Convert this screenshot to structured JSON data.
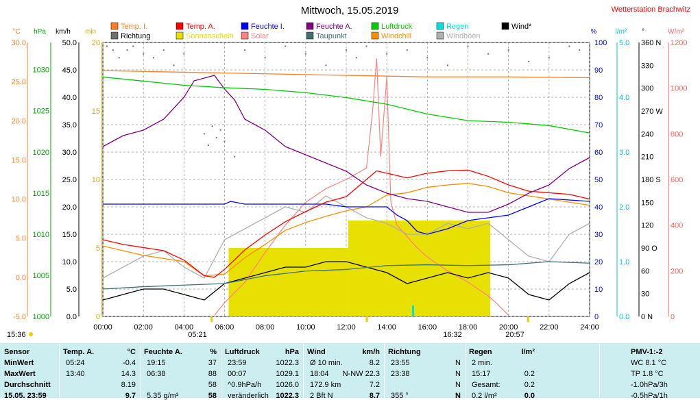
{
  "header": {
    "title": "Mittwoch, 15.05.2019",
    "station": "Wetterstation Brachwitz"
  },
  "legend": [
    {
      "label": "Temp. I.",
      "color": "#ff7f27"
    },
    {
      "label": "Temp. A.",
      "color": "#ff0000"
    },
    {
      "label": "Feuchte I.",
      "color": "#0000ff"
    },
    {
      "label": "Feuchte A.",
      "color": "#800080"
    },
    {
      "label": "Luftdruck",
      "color": "#00cc00"
    },
    {
      "label": "Regen",
      "color": "#00e0e0"
    },
    {
      "label": "Wind*",
      "color": "#000000"
    },
    {
      "label": "Richtung",
      "color": "#707070"
    },
    {
      "label": "Sonnenschein",
      "color": "#e8e000"
    },
    {
      "label": "Solar",
      "color": "#ff8080"
    },
    {
      "label": "Taupunkt",
      "color": "#407070"
    },
    {
      "label": "Windchill",
      "color": "#ff8c00"
    },
    {
      "label": "Windböen",
      "color": "#b0b0b0"
    }
  ],
  "axis_units": {
    "celsius": "°C",
    "hpa": "hPa",
    "kmh": "km/h",
    "min": "min",
    "percent": "%",
    "rain": "l/m²",
    "deg": "°",
    "solar": "W/m²"
  },
  "axis_ticks": {
    "celsius": [
      "30.0",
      "25.0",
      "20.0",
      "15.0",
      "10.0",
      "5.0",
      "0.0",
      "-5.0"
    ],
    "hpa": [
      "1030",
      "1025",
      "1020",
      "1015",
      "1010",
      "1005",
      "1000"
    ],
    "kmh": [
      "50.0",
      "45.0",
      "40.0",
      "35.0",
      "30.0",
      "25.0",
      "20.0",
      "15.0",
      "10.0",
      "5.0",
      "0.0"
    ],
    "min": [
      "20",
      "15",
      "10",
      "5",
      "0"
    ],
    "percent": [
      "100",
      "90",
      "80",
      "70",
      "60",
      "50",
      "40",
      "30",
      "20",
      "10",
      "0"
    ],
    "rain": [
      "5.0",
      "4.0",
      "3.0",
      "2.0",
      "1.0",
      "0.0"
    ],
    "deg": [
      "360 N",
      "330",
      "300",
      "270 W",
      "240",
      "210",
      "180 S",
      "150",
      "120",
      "90 O",
      "60",
      "30",
      "0 N"
    ],
    "solar": [
      "1200",
      "1000",
      "800",
      "600",
      "400",
      "200",
      "0"
    ],
    "time": [
      "00:00",
      "02:00",
      "04:00",
      "06:00",
      "08:00",
      "10:00",
      "12:00",
      "14:00",
      "16:00",
      "18:00",
      "20:00",
      "22:00",
      "24:00"
    ]
  },
  "sun_markers": {
    "left_time": "15:36",
    "sunrise": "05:21",
    "noon": "16:32",
    "sunset": "20:57"
  },
  "chart_data": {
    "type": "line",
    "x_unit": "hour",
    "xlim": [
      0,
      24
    ],
    "series": [
      {
        "name": "Temp. A.",
        "axis": "celsius",
        "color": "#ff0000",
        "x": [
          0,
          1,
          2,
          3,
          3.5,
          4,
          5,
          5.5,
          6,
          7,
          8,
          9,
          10,
          11,
          12,
          13,
          13.5,
          14,
          15,
          16,
          17,
          18,
          19,
          20,
          21,
          22,
          23,
          24
        ],
        "y": [
          4.8,
          4.2,
          3.8,
          3.4,
          2.8,
          2.2,
          0.2,
          0.0,
          1.0,
          3.5,
          5.4,
          7.1,
          8.4,
          9.6,
          10.3,
          12.5,
          13.6,
          13.3,
          12.7,
          13.3,
          13.6,
          13.7,
          12.9,
          11.8,
          11.0,
          10.8,
          10.6,
          10.0
        ]
      },
      {
        "name": "Temp. I.",
        "axis": "celsius",
        "color": "#ff7f27",
        "x": [
          0,
          4,
          8,
          12,
          16,
          20,
          24
        ],
        "y": [
          26.4,
          26.2,
          26.0,
          25.8,
          25.6,
          25.6,
          25.5
        ]
      },
      {
        "name": "Feuchte A.",
        "axis": "percent",
        "color": "#800080",
        "x": [
          0,
          1,
          2,
          3,
          4,
          4.5,
          5,
          5.5,
          6,
          6.5,
          7,
          8,
          9,
          10,
          11,
          12,
          13,
          14,
          15,
          16,
          17,
          18,
          19,
          20,
          21,
          22,
          23,
          24
        ],
        "y": [
          62,
          66,
          68,
          72,
          80,
          86,
          87,
          88,
          83,
          79,
          72,
          68,
          62,
          59,
          56,
          53,
          48,
          45,
          43,
          42,
          40,
          38,
          38,
          41,
          45,
          48,
          54,
          58
        ]
      },
      {
        "name": "Feuchte I.",
        "axis": "percent",
        "color": "#0000ff",
        "x": [
          0,
          2,
          4,
          6,
          6.3,
          7,
          9,
          11,
          12,
          13,
          14,
          14.5,
          15,
          15.5,
          16,
          17,
          18,
          19,
          20,
          22,
          24
        ],
        "y": [
          41,
          41,
          41,
          41,
          42,
          41,
          41,
          41,
          40,
          40,
          40,
          37,
          35,
          31,
          30,
          32,
          35,
          36,
          37,
          43,
          42
        ]
      },
      {
        "name": "Luftdruck",
        "axis": "hpa",
        "color": "#00cc00",
        "x": [
          0,
          2,
          4,
          6,
          8,
          10,
          12,
          14,
          16,
          18,
          20,
          22,
          24
        ],
        "y": [
          1029.1,
          1028.6,
          1028.1,
          1027.8,
          1027.6,
          1027.2,
          1026.6,
          1025.8,
          1024.6,
          1023.8,
          1023.6,
          1023.2,
          1022.3
        ]
      },
      {
        "name": "Taupunkt",
        "axis": "celsius",
        "color": "#407070",
        "x": [
          0,
          2,
          4,
          6,
          8,
          10,
          12,
          14,
          16,
          18,
          20,
          22,
          24
        ],
        "y": [
          -1.5,
          -1.2,
          -1.0,
          -0.8,
          0.2,
          0.8,
          1.0,
          1.5,
          1.6,
          1.5,
          1.6,
          2.0,
          1.8
        ]
      },
      {
        "name": "Windchill",
        "axis": "celsius",
        "color": "#ff8c00",
        "x": [
          0,
          2,
          4,
          5,
          6,
          7,
          8,
          9,
          10,
          11,
          12,
          13,
          14,
          15,
          16,
          17,
          18,
          19,
          20,
          21,
          22,
          23,
          24
        ],
        "y": [
          4.0,
          2.8,
          2.0,
          0.2,
          0.4,
          2.5,
          4.2,
          6.0,
          7.0,
          7.8,
          8.5,
          9.0,
          10.5,
          10.8,
          11.5,
          11.8,
          12.0,
          11.6,
          10.8,
          10.4,
          10.0,
          9.6,
          9.2
        ]
      },
      {
        "name": "Wind*",
        "axis": "kmh",
        "color": "#000000",
        "x": [
          0,
          1,
          2,
          3,
          4,
          5,
          6,
          7,
          8,
          9,
          10,
          11,
          12,
          13,
          14,
          15,
          16,
          17,
          18,
          19,
          20,
          21,
          22,
          23,
          24
        ],
        "y": [
          3,
          4,
          5,
          5,
          4,
          3,
          6,
          7,
          8,
          9,
          9,
          10,
          10,
          9,
          8,
          6,
          7,
          8,
          7,
          8,
          7,
          4,
          3,
          6,
          8
        ]
      },
      {
        "name": "Windböen",
        "axis": "kmh",
        "color": "#b0b0b0",
        "x": [
          0,
          1,
          2,
          3,
          4,
          5,
          6,
          7,
          8,
          9,
          10,
          11,
          12,
          13,
          14,
          15,
          16,
          17,
          18,
          19,
          20,
          21,
          22,
          23,
          24
        ],
        "y": [
          7,
          9,
          11,
          12,
          9,
          7,
          14,
          16,
          18,
          20,
          19,
          22,
          20,
          18,
          17,
          15,
          15,
          17,
          16,
          17,
          14,
          11,
          10,
          15,
          17
        ]
      }
    ],
    "solar": {
      "name": "Solar",
      "axis": "solar",
      "color": "#ff8080",
      "x": [
        5.5,
        6,
        7,
        8,
        9,
        10,
        11,
        12,
        13,
        13.3,
        13.5,
        13.7,
        14,
        14.2,
        14.5,
        15,
        15.5,
        16,
        17,
        18,
        19,
        19.5,
        20
      ],
      "y": [
        5,
        60,
        150,
        280,
        400,
        500,
        560,
        600,
        650,
        900,
        1130,
        700,
        1050,
        500,
        400,
        350,
        300,
        260,
        200,
        150,
        90,
        50,
        5
      ]
    },
    "sunshine": {
      "name": "Sonnenschein",
      "axis": "min",
      "color": "#e8e000",
      "blocks": [
        {
          "from": 6.2,
          "to": 12.1,
          "level": 5
        },
        {
          "from": 12.1,
          "to": 19.1,
          "level": 7
        }
      ]
    },
    "rain": {
      "name": "Regen",
      "axis": "rain",
      "color": "#00e0e0",
      "x": [
        15.28
      ],
      "y": [
        0.2
      ]
    },
    "direction": {
      "name": "Richtung",
      "axis": "deg",
      "color": "#707070",
      "x": [
        0.2,
        0.5,
        0.8,
        1.2,
        1.5,
        2,
        2.5,
        3,
        3.5,
        4,
        5,
        5.2,
        5.4,
        5.6,
        5.8,
        6,
        6.5,
        7,
        8,
        9,
        10,
        11,
        12,
        12.5,
        13,
        14,
        15,
        16,
        17,
        18,
        19,
        20,
        21,
        22,
        23,
        23.5
      ],
      "y": [
        355,
        350,
        340,
        350,
        355,
        345,
        340,
        350,
        330,
        345,
        240,
        225,
        250,
        235,
        245,
        230,
        210,
        350,
        340,
        355,
        345,
        330,
        350,
        340,
        355,
        345,
        350,
        340,
        330,
        355,
        345,
        350,
        335,
        340,
        355,
        350
      ]
    }
  },
  "table": {
    "columns": [
      {
        "header": "Sensor",
        "unit": "",
        "rows": [
          "MinWert",
          "MaxWert",
          "Durchschnitt",
          "15.05. 23:59"
        ]
      },
      {
        "header": "Temp. A.",
        "unit": "°C",
        "rows": [
          [
            "05:24",
            "-0.4"
          ],
          [
            "13:40",
            "14.3"
          ],
          [
            "",
            "8.19"
          ],
          [
            "",
            "9.7"
          ]
        ]
      },
      {
        "header": "Feuchte A.",
        "unit": "%",
        "rows": [
          [
            "19:15",
            "37"
          ],
          [
            "06:38",
            "88"
          ],
          [
            "",
            "58"
          ],
          [
            "5.35 g/m³",
            "58"
          ]
        ]
      },
      {
        "header": "Luftdruck",
        "unit": "hPa",
        "rows": [
          [
            "23:59",
            "1022.3"
          ],
          [
            "00:07",
            "1029.1"
          ],
          [
            "^0.9hPa/h",
            "1026.0"
          ],
          [
            "veränderlich",
            "1022.3"
          ]
        ]
      },
      {
        "header": "Wind",
        "unit": "km/h",
        "rows": [
          [
            "Ø 10 min.",
            "8.2"
          ],
          [
            "18:04",
            "N-NW 22.3"
          ],
          [
            "172.9 km",
            "7.2"
          ],
          [
            "2 Bft N",
            "8.7"
          ]
        ]
      },
      {
        "header": "Richtung",
        "unit": "",
        "rows": [
          [
            "23:55",
            "N"
          ],
          [
            "23:38",
            "N"
          ],
          [
            "",
            "N"
          ],
          [
            "355 °",
            "N"
          ]
        ]
      },
      {
        "header": "Regen",
        "unit": "l/m²",
        "rows": [
          [
            "2 min.",
            ""
          ],
          [
            "15:17",
            "0.2"
          ],
          [
            "Gesamt:",
            "0.2"
          ],
          [
            "0.2 l/m²",
            "0.0"
          ]
        ]
      },
      {
        "header": "PMV-1:-2",
        "unit": "",
        "rows": [
          "WC 8.1 °C",
          "TP 1.8 °C",
          "-1.0hPa/3h",
          "-0.5hPa/1h"
        ]
      }
    ]
  }
}
